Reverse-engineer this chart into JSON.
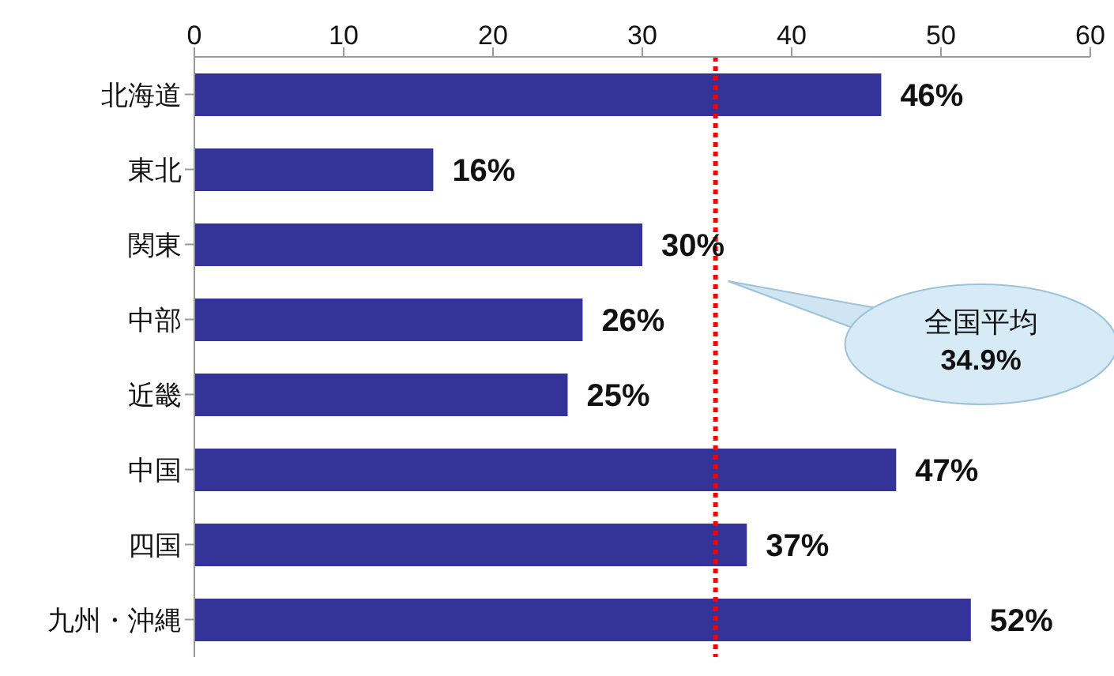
{
  "chart_data": {
    "type": "bar",
    "orientation": "horizontal",
    "categories": [
      "北海道",
      "東北",
      "関東",
      "中部",
      "近畿",
      "中国",
      "四国",
      "九州・沖縄"
    ],
    "values": [
      46,
      16,
      30,
      26,
      25,
      47,
      37,
      52
    ],
    "color": "#333399",
    "value_labels": [
      "46%",
      "16%",
      "30%",
      "26%",
      "25%",
      "47%",
      "37%",
      "52%"
    ],
    "xlim": [
      0,
      60
    ],
    "xticks": [
      0,
      10,
      20,
      30,
      40,
      50,
      60
    ],
    "grid": false,
    "legend": false,
    "ref_lines": [
      {
        "axis": "x",
        "value": 34.9,
        "label": "全国平均\n34.9%",
        "color": "#ff0000",
        "line_style": "dotted"
      }
    ]
  }
}
